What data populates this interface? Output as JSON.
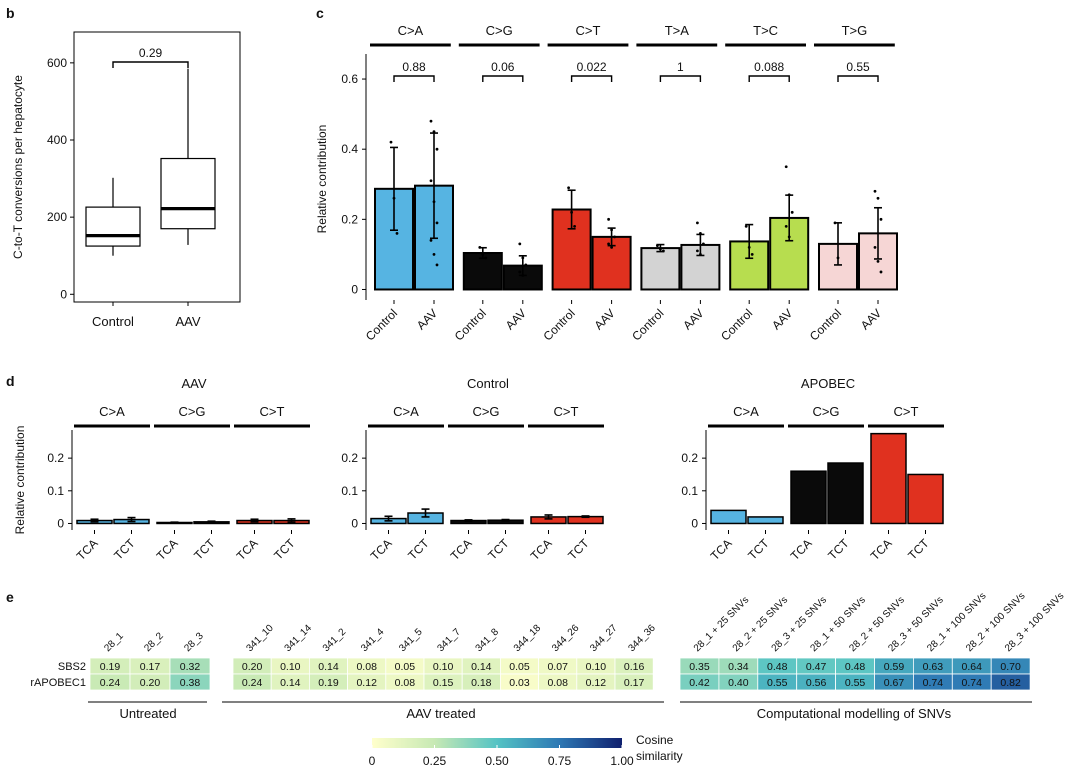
{
  "panel_labels": [
    "b",
    "c",
    "d",
    "e"
  ],
  "chart_data": [
    {
      "id": "b",
      "type": "box",
      "ylabel": "C-to-T conversions per hepatocyte",
      "ylim": [
        -20,
        680
      ],
      "yticks": [
        "0",
        "200",
        "400",
        "600"
      ],
      "categories": [
        "Control",
        "AAV"
      ],
      "boxes": [
        {
          "name": "Control",
          "min": 100,
          "q1": 125,
          "median": 152,
          "q3": 226,
          "max": 302
        },
        {
          "name": "AAV",
          "min": 128,
          "q1": 170,
          "median": 222,
          "q3": 352,
          "max": 585
        }
      ],
      "pvalue": "0.29"
    },
    {
      "id": "c",
      "type": "bar",
      "ylabel": "Relative contribution",
      "ylim": [
        -0.03,
        0.66
      ],
      "yticks": [
        "0",
        "0.2",
        "0.4",
        "0.6"
      ],
      "xlabels": [
        "Control",
        "AAV"
      ],
      "facets": [
        {
          "label": "C>A",
          "color": "#56B4E2",
          "pvalue": "0.88",
          "control": 0.287,
          "control_err": 0.118,
          "aav": 0.296,
          "aav_err": 0.15,
          "control_pts": [
            0.42,
            0.26,
            0.16
          ],
          "aav_pts": [
            0.48,
            0.45,
            0.4,
            0.31,
            0.25,
            0.19,
            0.14,
            0.1,
            0.07
          ]
        },
        {
          "label": "C>G",
          "color": "#0a0a0a",
          "pvalue": "0.06",
          "control": 0.104,
          "control_err": 0.015,
          "aav": 0.068,
          "aav_err": 0.028,
          "control_pts": [
            0.12,
            0.1,
            0.09
          ],
          "aav_pts": [
            0.13,
            0.09,
            0.07,
            0.05,
            0.04
          ]
        },
        {
          "label": "C>T",
          "color": "#E0311F",
          "pvalue": "0.022",
          "control": 0.228,
          "control_err": 0.055,
          "aav": 0.15,
          "aav_err": 0.025,
          "control_pts": [
            0.29,
            0.22,
            0.18
          ],
          "aav_pts": [
            0.2,
            0.17,
            0.15,
            0.13,
            0.12
          ]
        },
        {
          "label": "T>A",
          "color": "#d3d3d3",
          "pvalue": "1",
          "control": 0.118,
          "control_err": 0.01,
          "aav": 0.127,
          "aav_err": 0.03,
          "control_pts": [
            0.125,
            0.115,
            0.11
          ],
          "aav_pts": [
            0.19,
            0.16,
            0.13,
            0.11,
            0.1
          ]
        },
        {
          "label": "T>C",
          "color": "#B7DD4F",
          "pvalue": "0.088",
          "control": 0.137,
          "control_err": 0.048,
          "aav": 0.204,
          "aav_err": 0.065,
          "control_pts": [
            0.18,
            0.12,
            0.1
          ],
          "aav_pts": [
            0.35,
            0.27,
            0.22,
            0.18,
            0.15
          ]
        },
        {
          "label": "T>G",
          "color": "#F6D6D5",
          "pvalue": "0.55",
          "control": 0.13,
          "control_err": 0.06,
          "aav": 0.16,
          "aav_err": 0.073,
          "control_pts": [
            0.19,
            0.09
          ],
          "aav_pts": [
            0.28,
            0.26,
            0.2,
            0.12,
            0.08,
            0.05
          ]
        }
      ]
    },
    {
      "id": "d",
      "type": "bar",
      "ylabel": "Relative contribution",
      "ylim": [
        -0.02,
        0.28
      ],
      "yticks": [
        "0",
        "0.1",
        "0.2"
      ],
      "xlabels": [
        "TCA",
        "TCT"
      ],
      "groups": [
        {
          "title": "AAV",
          "facets": [
            {
              "label": "C>A",
              "color": "#56B4E2",
              "values": [
                0.009,
                0.012
              ],
              "errors": [
                0.004,
                0.006
              ]
            },
            {
              "label": "C>G",
              "color": "#0a0a0a",
              "values": [
                0.003,
                0.005
              ],
              "errors": [
                0.001,
                0.002
              ]
            },
            {
              "label": "C>T",
              "color": "#E0311F",
              "values": [
                0.009,
                0.009
              ],
              "errors": [
                0.004,
                0.005
              ]
            }
          ]
        },
        {
          "title": "Control",
          "facets": [
            {
              "label": "C>A",
              "color": "#56B4E2",
              "values": [
                0.015,
                0.032
              ],
              "errors": [
                0.007,
                0.012
              ]
            },
            {
              "label": "C>G",
              "color": "#0a0a0a",
              "values": [
                0.009,
                0.01
              ],
              "errors": [
                0.002,
                0.002
              ]
            },
            {
              "label": "C>T",
              "color": "#E0311F",
              "values": [
                0.02,
                0.021
              ],
              "errors": [
                0.006,
                0.002
              ]
            }
          ]
        },
        {
          "title": "APOBEC",
          "facets": [
            {
              "label": "C>A",
              "color": "#56B4E2",
              "values": [
                0.04,
                0.02
              ],
              "errors": [
                0,
                0
              ]
            },
            {
              "label": "C>G",
              "color": "#0a0a0a",
              "values": [
                0.16,
                0.185
              ],
              "errors": [
                0,
                0
              ]
            },
            {
              "label": "C>T",
              "color": "#E0311F",
              "values": [
                0.275,
                0.15
              ],
              "errors": [
                0,
                0
              ]
            }
          ]
        }
      ]
    },
    {
      "id": "e",
      "type": "heatmap",
      "rows": [
        "SBS2",
        "rAPOBEC1"
      ],
      "colorbar": {
        "title": [
          "Cosine",
          "similarity"
        ],
        "ticks": [
          "0",
          "0.25",
          "0.50",
          "0.75",
          "1.00"
        ],
        "range": [
          0,
          1
        ]
      },
      "groups": [
        {
          "label": "Untreated",
          "columns": [
            "28_1",
            "28_2",
            "28_3"
          ],
          "values": [
            [
              0.19,
              0.17,
              0.32
            ],
            [
              0.24,
              0.2,
              0.38
            ]
          ],
          "labels": [
            [
              "0.19",
              "0.17",
              "0.32"
            ],
            [
              "0.24",
              "0.20",
              "0.38"
            ]
          ]
        },
        {
          "label": "AAV treated",
          "columns": [
            "341_10",
            "341_14",
            "341_2",
            "341_4",
            "341_5",
            "341_7",
            "341_8",
            "344_18",
            "344_26",
            "344_27",
            "344_36"
          ],
          "values": [
            [
              0.2,
              0.1,
              0.14,
              0.08,
              0.05,
              0.1,
              0.14,
              0.05,
              0.07,
              0.1,
              0.16
            ],
            [
              0.24,
              0.14,
              0.19,
              0.12,
              0.08,
              0.15,
              0.18,
              0.03,
              0.08,
              0.12,
              0.17
            ]
          ],
          "labels": [
            [
              "0.20",
              "0.10",
              "0.14",
              "0.08",
              "0.05",
              "0.10",
              "0.14",
              "0.05",
              "0.07",
              "0.10",
              "0.16"
            ],
            [
              "0.24",
              "0.14",
              "0.19",
              "0.12",
              "0.08",
              "0.15",
              "0.18",
              "0.03",
              "0.08",
              "0.12",
              "0.17"
            ]
          ]
        },
        {
          "label": "Computational modelling of SNVs",
          "columns": [
            "28_1 + 25 SNVs",
            "28_2 + 25 SNVs",
            "28_3 + 25 SNVs",
            "28_1 + 50 SNVs",
            "28_2 + 50 SNVs",
            "28_3 + 50 SNVs",
            "28_1 + 100 SNVs",
            "28_2 + 100 SNVs",
            "28_3 + 100 SNVs"
          ],
          "values": [
            [
              0.35,
              0.34,
              0.48,
              0.47,
              0.48,
              0.59,
              0.63,
              0.64,
              0.7
            ],
            [
              0.42,
              0.4,
              0.55,
              0.56,
              0.55,
              0.67,
              0.74,
              0.74,
              0.82
            ]
          ],
          "labels": [
            [
              "0.35",
              "0.34",
              "0.48",
              "0.47",
              "0.48",
              "0.59",
              "0.63",
              "0.64",
              "0.70"
            ],
            [
              "0.42",
              "0.40",
              "0.55",
              "0.56",
              "0.55",
              "0.67",
              "0.74",
              "0.74",
              "0.82"
            ]
          ]
        }
      ]
    }
  ]
}
